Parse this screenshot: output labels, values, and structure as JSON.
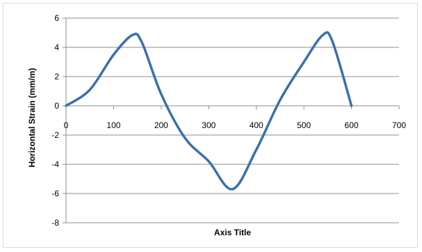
{
  "chart_data": {
    "type": "line",
    "title": "",
    "xlabel": "Axis Title",
    "ylabel": "Horizontal Strain (mm/m)",
    "xlim": [
      0,
      700
    ],
    "ylim": [
      -8,
      6
    ],
    "x_ticks": [
      0,
      100,
      200,
      300,
      400,
      500,
      600,
      700
    ],
    "y_ticks": [
      -8,
      -6,
      -4,
      -2,
      0,
      2,
      4,
      6
    ],
    "grid": "horizontal",
    "legend": "none",
    "series": [
      {
        "color": "#3a6fb0",
        "x": [
          0,
          50,
          100,
          140,
          160,
          200,
          250,
          300,
          350,
          400,
          450,
          500,
          540,
          560,
          600
        ],
        "y": [
          0,
          1.1,
          3.5,
          4.85,
          4.3,
          0.8,
          -2.2,
          -3.8,
          -5.7,
          -3.0,
          0.4,
          3.0,
          4.85,
          4.4,
          0
        ]
      }
    ]
  }
}
